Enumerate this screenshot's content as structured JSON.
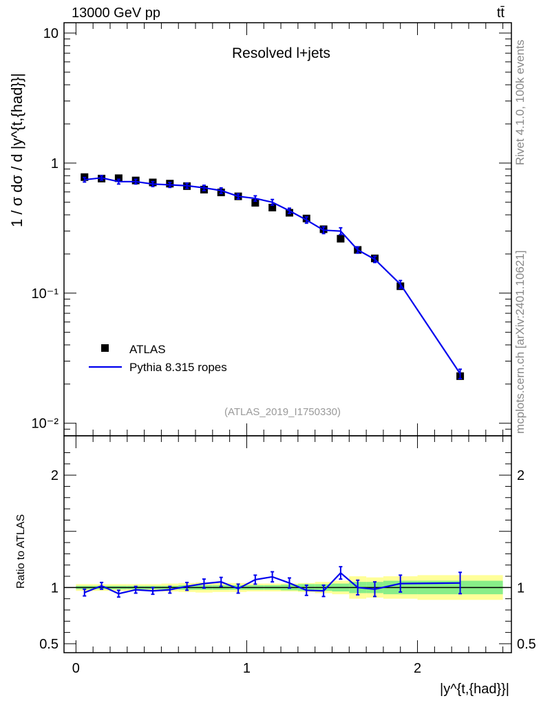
{
  "header": {
    "energy_label": "13000 GeV pp",
    "process_label": "tt̄"
  },
  "side_labels": {
    "rivet": "Rivet 4.1.0,  100k events",
    "mcplots": "mcplots.cern.ch [arXiv:2401.10621]"
  },
  "chart_data": [
    {
      "type": "scatter",
      "panel": "main",
      "title": "Resolved l+jets",
      "analysis_label": "(ATLAS_2019_I1750330)",
      "ylabel": "1 / σ dσ / d |y^{t,{had}}|",
      "yscale": "log",
      "ylim": [
        0.008,
        12
      ],
      "xlim": [
        -0.07,
        2.55
      ],
      "y_ticks": [
        {
          "value": 10,
          "label": "10"
        },
        {
          "value": 1,
          "label": "1"
        },
        {
          "value": 0.1,
          "label": "10⁻¹"
        },
        {
          "value": 0.01,
          "label": "10⁻²"
        }
      ],
      "legend": [
        {
          "label": "ATLAS",
          "style": "marker"
        },
        {
          "label": "Pythia 8.315 ropes",
          "style": "line"
        }
      ],
      "x_bins": [
        [
          0,
          0.1
        ],
        [
          0.1,
          0.2
        ],
        [
          0.2,
          0.3
        ],
        [
          0.3,
          0.4
        ],
        [
          0.4,
          0.5
        ],
        [
          0.5,
          0.6
        ],
        [
          0.6,
          0.7
        ],
        [
          0.7,
          0.8
        ],
        [
          0.8,
          0.9
        ],
        [
          0.9,
          1.0
        ],
        [
          1.0,
          1.1
        ],
        [
          1.1,
          1.2
        ],
        [
          1.2,
          1.3
        ],
        [
          1.3,
          1.4
        ],
        [
          1.4,
          1.5
        ],
        [
          1.5,
          1.6
        ],
        [
          1.6,
          1.7
        ],
        [
          1.7,
          1.8
        ],
        [
          1.8,
          2.0
        ],
        [
          2.0,
          2.5
        ]
      ],
      "x": [
        0.05,
        0.15,
        0.25,
        0.35,
        0.45,
        0.55,
        0.65,
        0.75,
        0.85,
        0.95,
        1.05,
        1.15,
        1.25,
        1.35,
        1.45,
        1.55,
        1.65,
        1.75,
        1.9,
        2.25
      ],
      "series": [
        {
          "name": "ATLAS",
          "color": "#000000",
          "values": [
            0.78,
            0.76,
            0.765,
            0.735,
            0.71,
            0.695,
            0.665,
            0.625,
            0.595,
            0.555,
            0.495,
            0.455,
            0.415,
            0.375,
            0.31,
            0.262,
            0.215,
            0.185,
            0.113,
            0.023
          ]
        },
        {
          "name": "Pythia 8.315 ropes",
          "color": "#0000ee",
          "values": [
            0.745,
            0.77,
            0.72,
            0.72,
            0.69,
            0.68,
            0.67,
            0.645,
            0.615,
            0.555,
            0.535,
            0.5,
            0.43,
            0.365,
            0.305,
            0.3,
            0.215,
            0.182,
            0.117,
            0.024
          ],
          "errors": [
            0.03,
            0.03,
            0.03,
            0.03,
            0.03,
            0.03,
            0.03,
            0.03,
            0.03,
            0.025,
            0.025,
            0.025,
            0.02,
            0.02,
            0.018,
            0.018,
            0.012,
            0.01,
            0.008,
            0.002
          ]
        }
      ]
    },
    {
      "type": "line",
      "panel": "ratio",
      "ylabel": "Ratio to ATLAS",
      "xlabel": "|y^{t,{had}}|",
      "ylim": [
        0.42,
        2.35
      ],
      "xlim": [
        -0.07,
        2.55
      ],
      "y_ticks": [
        {
          "value": 2,
          "label": "2"
        },
        {
          "value": 1,
          "label": "1"
        },
        {
          "value": 0.5,
          "label": "0.5"
        }
      ],
      "x_ticks": [
        {
          "value": 0,
          "label": "0"
        },
        {
          "value": 1,
          "label": "1"
        },
        {
          "value": 2,
          "label": "2"
        }
      ],
      "band_stat": [
        0.015,
        0.015,
        0.015,
        0.015,
        0.015,
        0.015,
        0.02,
        0.02,
        0.02,
        0.02,
        0.02,
        0.02,
        0.025,
        0.03,
        0.03,
        0.035,
        0.05,
        0.05,
        0.06,
        0.06
      ],
      "band_total": [
        0.03,
        0.03,
        0.03,
        0.03,
        0.03,
        0.035,
        0.04,
        0.045,
        0.04,
        0.04,
        0.035,
        0.035,
        0.035,
        0.04,
        0.05,
        0.06,
        0.1,
        0.09,
        0.1,
        0.11
      ],
      "series": [
        {
          "name": "Pythia 8.315 ropes",
          "color": "#0000ee",
          "values": [
            0.955,
            1.015,
            0.945,
            0.98,
            0.97,
            0.98,
            1.01,
            1.035,
            1.05,
            0.99,
            1.07,
            1.095,
            1.04,
            0.975,
            0.97,
            1.13,
            1.0,
            0.985,
            1.035,
            1.04
          ],
          "errors": [
            0.03,
            0.03,
            0.03,
            0.03,
            0.03,
            0.03,
            0.035,
            0.04,
            0.04,
            0.04,
            0.04,
            0.045,
            0.045,
            0.045,
            0.05,
            0.055,
            0.065,
            0.065,
            0.075,
            0.095
          ]
        }
      ]
    }
  ]
}
